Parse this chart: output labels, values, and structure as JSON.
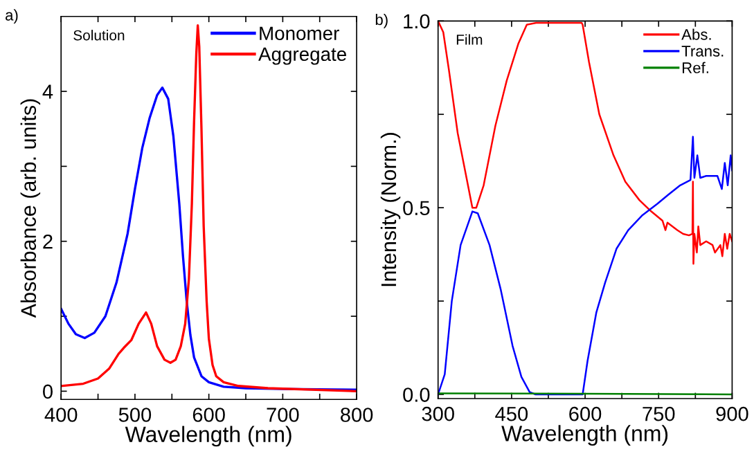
{
  "chart_data": [
    {
      "type": "line",
      "title": "a)",
      "xlabel": "Wavelength (nm)",
      "ylabel": "Absorbance (arb. units)",
      "annotations": [
        "Solution"
      ],
      "xlim": [
        400,
        800
      ],
      "xticks": [
        400,
        {
          "value": 450,
          "label": null
        },
        500,
        {
          "value": 550,
          "label": null
        },
        600,
        {
          "value": 650,
          "label": null
        },
        700,
        {
          "value": 750,
          "label": null
        },
        800
      ],
      "ylim": [
        -0.11,
        5.0
      ],
      "yticks": [
        0,
        {
          "value": 1,
          "label": null
        },
        2,
        {
          "value": 3,
          "label": null
        },
        4
      ],
      "grid": false,
      "legend": "top right",
      "marker": "none",
      "line_style": "solid",
      "series": [
        {
          "name": "Monomer",
          "color": "#0000ff",
          "x": [
            400,
            410,
            420,
            432,
            445,
            460,
            475,
            490,
            500,
            510,
            520,
            530,
            537,
            545,
            552,
            560,
            565,
            570,
            575,
            580,
            590,
            600,
            620,
            650,
            700,
            800
          ],
          "values": [
            1.1,
            0.9,
            0.76,
            0.71,
            0.78,
            1.0,
            1.45,
            2.1,
            2.7,
            3.25,
            3.65,
            3.95,
            4.05,
            3.9,
            3.4,
            2.5,
            1.8,
            1.2,
            0.75,
            0.45,
            0.2,
            0.12,
            0.06,
            0.04,
            0.03,
            0.02
          ]
        },
        {
          "name": "Aggregate",
          "color": "#ff0000",
          "x": [
            400,
            430,
            450,
            465,
            478,
            485,
            495,
            505,
            515,
            522,
            530,
            540,
            548,
            555,
            562,
            568,
            573,
            577,
            580,
            583,
            585,
            587,
            590,
            593,
            597,
            600,
            605,
            610,
            620,
            640,
            680,
            800
          ],
          "values": [
            0.07,
            0.1,
            0.17,
            0.3,
            0.5,
            0.58,
            0.68,
            0.9,
            1.05,
            0.9,
            0.6,
            0.42,
            0.38,
            0.42,
            0.6,
            0.9,
            1.5,
            2.5,
            3.6,
            4.5,
            4.88,
            4.6,
            3.5,
            2.2,
            1.2,
            0.7,
            0.35,
            0.2,
            0.12,
            0.07,
            0.04,
            0.0
          ]
        }
      ]
    },
    {
      "type": "line",
      "title": "b)",
      "xlabel": "Wavelength (nm)",
      "ylabel": "Intensity (Norm.)",
      "annotations": [
        "Film"
      ],
      "xlim": [
        300,
        900
      ],
      "xticks": [
        300,
        {
          "value": 375,
          "label": null
        },
        450,
        {
          "value": 525,
          "label": null
        },
        600,
        {
          "value": 675,
          "label": null
        },
        750,
        {
          "value": 825,
          "label": null
        },
        900
      ],
      "ylim": [
        -0.011,
        1.0
      ],
      "yticks": [
        {
          "value": 0,
          "label": "0.0"
        },
        {
          "value": 0.25,
          "label": null
        },
        0.5,
        {
          "value": 0.75,
          "label": null
        },
        {
          "value": 1,
          "label": "1.0"
        }
      ],
      "grid": false,
      "legend": "top right",
      "marker": "none",
      "line_style": "solid",
      "series": [
        {
          "name": "Abs.",
          "color": "#ff0000",
          "x": [
            300,
            310.6,
            322,
            340,
            358,
            370,
            378,
            393,
            417,
            440,
            464,
            481,
            500,
            550,
            593,
            595,
            608,
            629,
            658,
            682,
            711,
            735,
            758,
            764,
            768,
            788,
            800,
            812,
            819,
            820,
            821,
            823,
            828,
            831,
            835,
            847,
            860,
            865,
            876,
            880,
            885,
            890,
            895,
            900
          ],
          "values": [
            1.0,
            0.97,
            0.87,
            0.7,
            0.58,
            0.5,
            0.5,
            0.56,
            0.72,
            0.84,
            0.94,
            0.99,
            0.995,
            0.995,
            0.995,
            0.99,
            0.89,
            0.75,
            0.64,
            0.57,
            0.52,
            0.49,
            0.465,
            0.44,
            0.46,
            0.44,
            0.43,
            0.426,
            0.43,
            0.57,
            0.35,
            0.43,
            0.38,
            0.45,
            0.4,
            0.41,
            0.4,
            0.38,
            0.4,
            0.37,
            0.43,
            0.39,
            0.43,
            0.41
          ]
        },
        {
          "name": "Trans.",
          "color": "#0000ff",
          "x": [
            300,
            313.6,
            328,
            346,
            370,
            381,
            405,
            428,
            452,
            470,
            487,
            499,
            595,
            605,
            623,
            641,
            664,
            688,
            717,
            747,
            770,
            794,
            815,
            820,
            823,
            829,
            835,
            847,
            870,
            879,
            885,
            891,
            897,
            900
          ],
          "values": [
            0.0,
            0.054,
            0.25,
            0.4,
            0.49,
            0.485,
            0.4,
            0.28,
            0.13,
            0.047,
            0.006,
            0.0,
            0.0,
            0.09,
            0.22,
            0.3,
            0.39,
            0.44,
            0.48,
            0.51,
            0.535,
            0.56,
            0.574,
            0.69,
            0.58,
            0.64,
            0.58,
            0.585,
            0.585,
            0.55,
            0.62,
            0.56,
            0.64,
            0.6
          ]
        },
        {
          "name": "Ref.",
          "color": "#008000",
          "x": [
            300,
            600,
            900
          ],
          "values": [
            0.003,
            0.002,
            0.0
          ]
        }
      ]
    }
  ]
}
